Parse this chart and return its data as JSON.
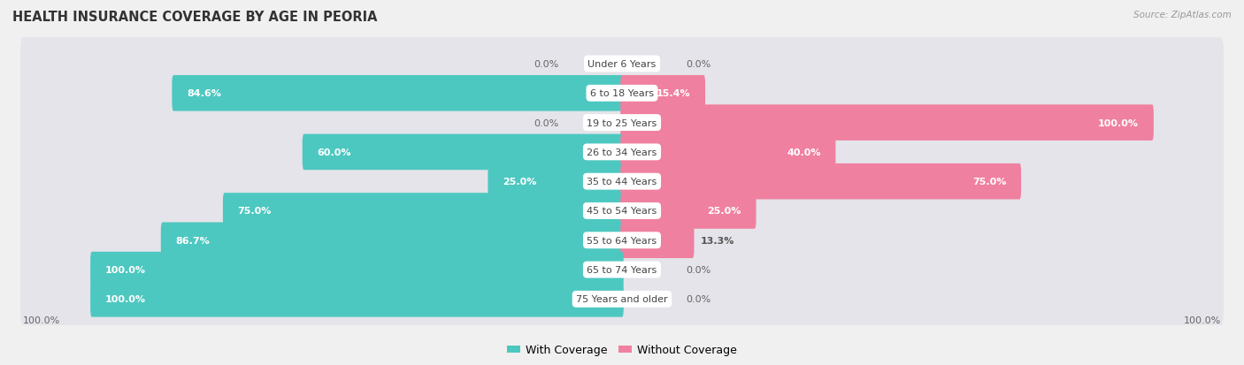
{
  "title": "HEALTH INSURANCE COVERAGE BY AGE IN PEORIA",
  "source": "Source: ZipAtlas.com",
  "categories": [
    "Under 6 Years",
    "6 to 18 Years",
    "19 to 25 Years",
    "26 to 34 Years",
    "35 to 44 Years",
    "45 to 54 Years",
    "55 to 64 Years",
    "65 to 74 Years",
    "75 Years and older"
  ],
  "with_coverage": [
    0.0,
    84.6,
    0.0,
    60.0,
    25.0,
    75.0,
    86.7,
    100.0,
    100.0
  ],
  "without_coverage": [
    0.0,
    15.4,
    100.0,
    40.0,
    75.0,
    25.0,
    13.3,
    0.0,
    0.0
  ],
  "color_with": "#4dc8c0",
  "color_with_light": "#a8dedd",
  "color_without": "#f080a0",
  "color_without_light": "#f8b8cc",
  "bg_color": "#f0f0f0",
  "row_bg_color": "#e8e8ec",
  "title_fontsize": 10.5,
  "label_fontsize": 8,
  "pct_fontsize": 8,
  "legend_fontsize": 9,
  "bar_height": 0.62,
  "xlim_left": -115,
  "xlim_right": 115,
  "scale": 1.0
}
